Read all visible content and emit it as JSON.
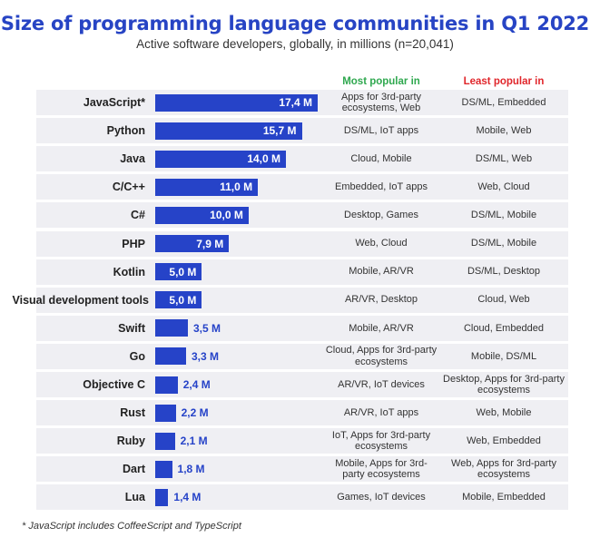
{
  "header": {
    "title": "Size of programming language communities in Q1 2022",
    "subtitle": "Active software developers, globally, in millions (n=20,041)"
  },
  "columns": {
    "most_popular": "Most popular in",
    "least_popular": "Least popular in"
  },
  "footnote": "* JavaScript includes CoffeeScript and TypeScript",
  "colors": {
    "bar": "#2643c8",
    "title": "#2744c4",
    "most_popular_header": "#2fa84f",
    "least_popular_header": "#e0262b",
    "row_background": "#efeff3"
  },
  "chart_data": {
    "type": "bar",
    "orientation": "horizontal",
    "title": "Size of programming language communities in Q1 2022",
    "subtitle": "Active software developers, globally, in millions (n=20,041)",
    "unit": "M",
    "categories": [
      "JavaScript*",
      "Python",
      "Java",
      "C/C++",
      "C#",
      "PHP",
      "Kotlin",
      "Visual development tools",
      "Swift",
      "Go",
      "Objective C",
      "Rust",
      "Ruby",
      "Dart",
      "Lua"
    ],
    "values": [
      17.4,
      15.7,
      14.0,
      11.0,
      10.0,
      7.9,
      5.0,
      5.0,
      3.5,
      3.3,
      2.4,
      2.2,
      2.1,
      1.8,
      1.4
    ],
    "value_labels": [
      "17,4 M",
      "15,7 M",
      "14,0 M",
      "11,0 M",
      "10,0 M",
      "7,9 M",
      "5,0 M",
      "5,0 M",
      "3,5 M",
      "3,3 M",
      "2,4 M",
      "2,2 M",
      "2,1 M",
      "1,8 M",
      "1,4 M"
    ],
    "most_popular_in": [
      "Apps for 3rd-party ecosystems, Web",
      "DS/ML, IoT apps",
      "Cloud, Mobile",
      "Embedded, IoT apps",
      "Desktop, Games",
      "Web, Cloud",
      "Mobile, AR/VR",
      "AR/VR, Desktop",
      "Mobile, AR/VR",
      "Cloud, Apps for 3rd-party ecosystems",
      "AR/VR, IoT devices",
      "AR/VR, IoT apps",
      "IoT, Apps for 3rd-party ecosystems",
      "Mobile, Apps for 3rd-party ecosystems",
      "Games, IoT devices"
    ],
    "least_popular_in": [
      "DS/ML, Embedded",
      "Mobile, Web",
      "DS/ML, Web",
      "Web, Cloud",
      "DS/ML, Mobile",
      "DS/ML, Mobile",
      "DS/ML, Desktop",
      "Cloud, Web",
      "Cloud, Embedded",
      "Mobile, DS/ML",
      "Desktop, Apps for 3rd-party ecosystems",
      "Web, Mobile",
      "Web, Embedded",
      "Web, Apps for 3rd-party ecosystems",
      "Mobile, Embedded"
    ],
    "grid": false,
    "legend": "none"
  }
}
